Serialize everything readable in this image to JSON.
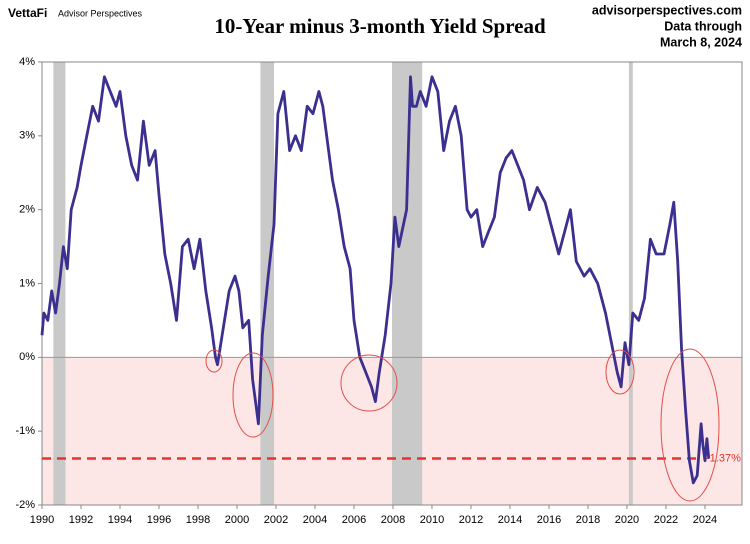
{
  "chart_data": {
    "type": "line",
    "title": "10-Year minus 3-month Yield Spread",
    "brand": "VettaFi",
    "brand_subtitle": "Advisor Perspectives",
    "source": "advisorperspectives.com",
    "note_line1": "Data through",
    "note_line2": "March 8, 2024",
    "xlim": [
      1990,
      2025.9
    ],
    "xticks": [
      1990,
      1992,
      1994,
      1996,
      1998,
      2000,
      2002,
      2004,
      2006,
      2008,
      2010,
      2012,
      2014,
      2016,
      2018,
      2020,
      2022,
      2024
    ],
    "ylim": [
      -2,
      4
    ],
    "yticks": [
      {
        "value": -2,
        "label": "-2%"
      },
      {
        "value": -1,
        "label": "-1%"
      },
      {
        "value": 0,
        "label": "0%"
      },
      {
        "value": 1,
        "label": "1%"
      },
      {
        "value": 2,
        "label": "2%"
      },
      {
        "value": 3,
        "label": "3%"
      },
      {
        "value": 4,
        "label": "4%"
      }
    ],
    "recessions": [
      [
        1990.58,
        1991.2
      ],
      [
        2001.2,
        2001.9
      ],
      [
        2007.95,
        2009.5
      ],
      [
        2020.1,
        2020.3
      ]
    ],
    "reference_line": {
      "value": -1.37,
      "label": "-1.37%",
      "color": "#e8322d"
    },
    "color": "#3b2f8f",
    "x": [
      1990.0,
      1990.1,
      1990.3,
      1990.5,
      1990.7,
      1990.9,
      1991.1,
      1991.3,
      1991.5,
      1991.8,
      1992.0,
      1992.3,
      1992.6,
      1992.9,
      1993.2,
      1993.5,
      1993.8,
      1994.0,
      1994.3,
      1994.6,
      1994.9,
      1995.2,
      1995.5,
      1995.8,
      1996.0,
      1996.3,
      1996.6,
      1996.9,
      1997.2,
      1997.5,
      1997.8,
      1998.1,
      1998.4,
      1998.7,
      1998.9,
      1999.0,
      1999.3,
      1999.6,
      1999.9,
      2000.1,
      2000.3,
      2000.6,
      2000.8,
      2001.0,
      2001.1,
      2001.3,
      2001.6,
      2001.9,
      2002.1,
      2002.4,
      2002.7,
      2003.0,
      2003.3,
      2003.6,
      2003.9,
      2004.2,
      2004.4,
      2004.7,
      2004.9,
      2005.2,
      2005.5,
      2005.8,
      2006.0,
      2006.3,
      2006.6,
      2006.9,
      2007.1,
      2007.3,
      2007.6,
      2007.9,
      2008.1,
      2008.3,
      2008.7,
      2008.9,
      2009.0,
      2009.2,
      2009.4,
      2009.7,
      2010.0,
      2010.3,
      2010.6,
      2010.9,
      2011.2,
      2011.5,
      2011.8,
      2012.0,
      2012.3,
      2012.6,
      2012.9,
      2013.2,
      2013.5,
      2013.8,
      2014.1,
      2014.4,
      2014.7,
      2015.0,
      2015.4,
      2015.8,
      2016.1,
      2016.5,
      2016.8,
      2017.1,
      2017.4,
      2017.8,
      2018.1,
      2018.5,
      2018.9,
      2019.2,
      2019.5,
      2019.7,
      2019.9,
      2020.1,
      2020.3,
      2020.6,
      2020.9,
      2021.2,
      2021.5,
      2021.9,
      2022.2,
      2022.4,
      2022.6,
      2022.8,
      2023.0,
      2023.2,
      2023.4,
      2023.6,
      2023.8,
      2023.9,
      2024.0,
      2024.1,
      2024.19
    ],
    "values": [
      0.3,
      0.6,
      0.5,
      0.9,
      0.6,
      1.0,
      1.5,
      1.2,
      2.0,
      2.3,
      2.6,
      3.0,
      3.4,
      3.2,
      3.8,
      3.6,
      3.4,
      3.6,
      3.0,
      2.6,
      2.4,
      3.2,
      2.6,
      2.8,
      2.2,
      1.4,
      1.0,
      0.5,
      1.5,
      1.6,
      1.2,
      1.6,
      0.9,
      0.4,
      0.0,
      -0.1,
      0.4,
      0.9,
      1.1,
      0.9,
      0.4,
      0.5,
      -0.3,
      -0.7,
      -0.9,
      0.3,
      1.1,
      1.8,
      3.3,
      3.6,
      2.8,
      3.0,
      2.8,
      3.4,
      3.3,
      3.6,
      3.4,
      2.8,
      2.4,
      2.0,
      1.5,
      1.2,
      0.5,
      0.0,
      -0.2,
      -0.4,
      -0.6,
      -0.2,
      0.3,
      1.0,
      1.9,
      1.5,
      2.0,
      3.8,
      3.4,
      3.4,
      3.6,
      3.4,
      3.8,
      3.6,
      2.8,
      3.2,
      3.4,
      3.0,
      2.0,
      1.9,
      2.0,
      1.5,
      1.7,
      1.9,
      2.5,
      2.7,
      2.8,
      2.6,
      2.4,
      2.0,
      2.3,
      2.1,
      1.8,
      1.4,
      1.7,
      2.0,
      1.3,
      1.1,
      1.2,
      1.0,
      0.6,
      0.2,
      -0.2,
      -0.4,
      0.2,
      -0.1,
      0.6,
      0.5,
      0.8,
      1.6,
      1.4,
      1.4,
      1.8,
      2.1,
      1.3,
      0.1,
      -0.7,
      -1.4,
      -1.7,
      -1.6,
      -0.9,
      -1.2,
      -1.4,
      -1.1,
      -1.37
    ]
  }
}
